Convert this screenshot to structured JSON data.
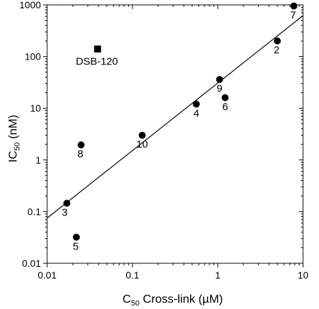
{
  "chart_data": {
    "type": "scatter",
    "title": "",
    "xscale": "log",
    "yscale": "log",
    "xlim": [
      0.01,
      10
    ],
    "ylim": [
      0.01,
      1000
    ],
    "xlabel": {
      "main": "C",
      "sub": "50",
      "rest": " Cross-link (µM)"
    },
    "ylabel": {
      "main": "IC",
      "sub": "50",
      "rest": " (nM)"
    },
    "x_ticks": [
      "0.01",
      "0.1",
      "1",
      "10"
    ],
    "y_ticks": [
      "0.01",
      "0.1",
      "1",
      "10",
      "100",
      "1000"
    ],
    "grid": false,
    "legend": "none",
    "series": [
      {
        "marker": "circle",
        "color": "#000000",
        "points": [
          {
            "label": "2",
            "x": 5.0,
            "y": 200
          },
          {
            "label": "3",
            "x": 0.017,
            "y": 0.145
          },
          {
            "label": "4",
            "x": 0.56,
            "y": 12
          },
          {
            "label": "5",
            "x": 0.022,
            "y": 0.032
          },
          {
            "label": "6",
            "x": 1.22,
            "y": 16
          },
          {
            "label": "7",
            "x": 7.8,
            "y": 950
          },
          {
            "label": "8",
            "x": 0.025,
            "y": 1.95
          },
          {
            "label": "9",
            "x": 1.05,
            "y": 36
          },
          {
            "label": "10",
            "x": 0.13,
            "y": 3.0
          }
        ]
      },
      {
        "marker": "square",
        "color": "#000000",
        "points": [
          {
            "label": "DSB-120",
            "x": 0.039,
            "y": 140
          }
        ]
      }
    ],
    "regression_line": {
      "x": [
        0.01,
        10
      ],
      "y": [
        0.075,
        620
      ]
    }
  }
}
